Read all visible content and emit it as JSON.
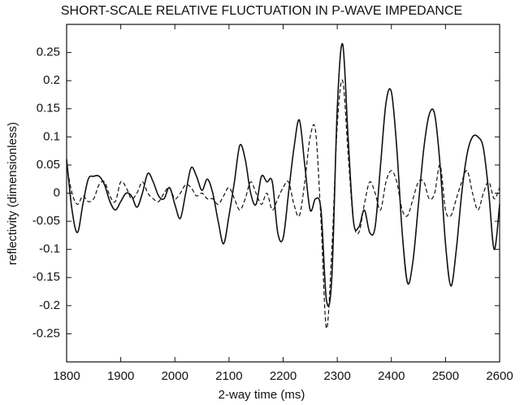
{
  "chart_data": {
    "type": "line",
    "title": "SHORT-SCALE RELATIVE FLUCTUATION IN P-WAVE IMPEDANCE",
    "x_label": "2-way time (ms)",
    "y_label": "reflectivity (dimensionless)",
    "x": [
      1800,
      1810,
      1820,
      1830,
      1840,
      1850,
      1860,
      1870,
      1880,
      1890,
      1900,
      1910,
      1920,
      1930,
      1940,
      1950,
      1960,
      1970,
      1980,
      1990,
      2000,
      2010,
      2020,
      2030,
      2040,
      2050,
      2060,
      2070,
      2080,
      2090,
      2100,
      2110,
      2120,
      2130,
      2140,
      2150,
      2160,
      2170,
      2180,
      2190,
      2200,
      2210,
      2220,
      2230,
      2240,
      2250,
      2260,
      2270,
      2280,
      2290,
      2300,
      2310,
      2320,
      2330,
      2340,
      2350,
      2360,
      2370,
      2380,
      2390,
      2400,
      2410,
      2420,
      2430,
      2440,
      2450,
      2460,
      2470,
      2480,
      2490,
      2500,
      2510,
      2520,
      2530,
      2540,
      2550,
      2560,
      2570,
      2580,
      2590,
      2600
    ],
    "series": [
      {
        "color": "#111111",
        "line_style": "solid",
        "values": [
          0.06,
          -0.03,
          -0.07,
          -0.02,
          0.025,
          0.03,
          0.03,
          0.015,
          -0.015,
          -0.03,
          -0.015,
          0,
          -0.005,
          -0.025,
          0,
          0.035,
          0.02,
          -0.005,
          -0.01,
          0.01,
          -0.02,
          -0.045,
          0,
          0.045,
          0.03,
          0.005,
          0.025,
          0,
          -0.05,
          -0.09,
          -0.04,
          0.02,
          0.085,
          0.06,
          0,
          -0.02,
          0.03,
          0.02,
          0.02,
          -0.07,
          -0.08,
          0,
          0.08,
          0.13,
          0.05,
          -0.03,
          -0.01,
          -0.03,
          -0.19,
          -0.15,
          0.15,
          0.265,
          0.1,
          -0.05,
          -0.06,
          -0.03,
          -0.07,
          -0.06,
          0.05,
          0.16,
          0.18,
          0.08,
          -0.07,
          -0.16,
          -0.12,
          -0.02,
          0.08,
          0.14,
          0.14,
          0.05,
          -0.09,
          -0.165,
          -0.1,
          0,
          0.07,
          0.1,
          0.1,
          0.08,
          0,
          -0.1,
          -0.02
        ]
      },
      {
        "color": "#111111",
        "line_style": "dashed",
        "values": [
          0.05,
          0,
          -0.02,
          -0.005,
          -0.015,
          -0.01,
          0.015,
          0.02,
          -0.005,
          -0.015,
          0.02,
          0.01,
          -0.01,
          0,
          0.02,
          0,
          -0.01,
          -0.015,
          0,
          0.01,
          -0.01,
          0,
          0.015,
          0.01,
          -0.005,
          0,
          -0.01,
          -0.01,
          -0.02,
          -0.005,
          0.01,
          -0.01,
          -0.03,
          -0.01,
          0.02,
          0,
          -0.02,
          0,
          -0.03,
          -0.01,
          0.01,
          0.02,
          -0.02,
          -0.04,
          0.02,
          0.1,
          0.11,
          -0.05,
          -0.24,
          -0.1,
          0.12,
          0.2,
          0.07,
          -0.05,
          -0.07,
          -0.02,
          0.02,
          0,
          -0.03,
          0.02,
          0.04,
          0.02,
          -0.03,
          -0.04,
          -0.01,
          0.02,
          0.02,
          -0.01,
          0,
          0.05,
          -0.03,
          -0.04,
          -0.01,
          0.02,
          0.04,
          0,
          -0.03,
          0,
          0.02,
          -0.01,
          0.01
        ]
      }
    ],
    "xlim": [
      1800,
      2600
    ],
    "xticks": [
      1800,
      1900,
      2000,
      2100,
      2200,
      2300,
      2400,
      2500,
      2600
    ],
    "ylim": [
      -0.3,
      0.3
    ],
    "yticks": [
      0.25,
      0.2,
      0.15,
      0.1,
      0.05,
      0,
      -0.05,
      -0.1,
      -0.15,
      -0.2,
      -0.25
    ],
    "grid": false
  }
}
